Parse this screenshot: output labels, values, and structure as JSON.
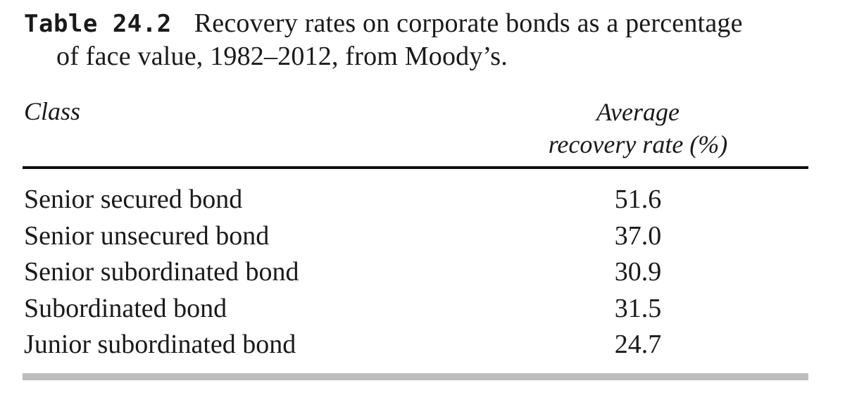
{
  "caption": {
    "label": "Table 24.2",
    "line1": "Recovery rates on corporate bonds as a percentage",
    "line2": "of face value, 1982–2012, from Moody’s."
  },
  "table": {
    "headers": {
      "class": "Class",
      "rate_line1": "Average",
      "rate_line2": "recovery rate (%)"
    },
    "rows": [
      {
        "class": "Senior secured bond",
        "rate": "51.6"
      },
      {
        "class": "Senior unsecured bond",
        "rate": "37.0"
      },
      {
        "class": "Senior subordinated bond",
        "rate": "30.9"
      },
      {
        "class": "Subordinated bond",
        "rate": "31.5"
      },
      {
        "class": "Junior subordinated bond",
        "rate": "24.7"
      }
    ]
  }
}
